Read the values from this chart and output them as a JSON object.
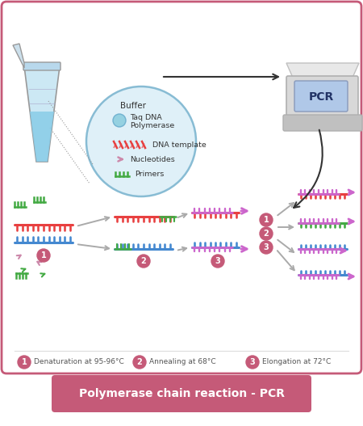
{
  "title": "Polymerase chain reaction - PCR",
  "title_bg": "#c55a78",
  "title_color": "#ffffff",
  "border_color": "#c55a78",
  "bg_color": "#ffffff",
  "legend": [
    {
      "num": "1",
      "text": "Denaturation at 95-96°C"
    },
    {
      "num": "2",
      "text": "Annealing at 68°C"
    },
    {
      "num": "3",
      "text": "Elongation at 72°C"
    }
  ],
  "circle_color": "#c55a78",
  "text_color": "#555555",
  "bubble_border": "#88bcd4",
  "bubble_bg": "#dff0f8",
  "dna_red": "#e84040",
  "dna_blue": "#4488d0",
  "dna_green": "#44aa44",
  "dna_pink": "#cc66cc",
  "arrow_gray": "#aaaaaa",
  "arrow_dark": "#333333",
  "tube_body": "#cce8f4",
  "tube_liquid": "#88cce8",
  "tube_edge": "#999999",
  "pcr_body": "#d8d8d8",
  "pcr_base": "#c0c0c0",
  "pcr_lid": "#e8e8e8",
  "pcr_screen": "#88aacc",
  "pcr_screen_text": "#223366"
}
